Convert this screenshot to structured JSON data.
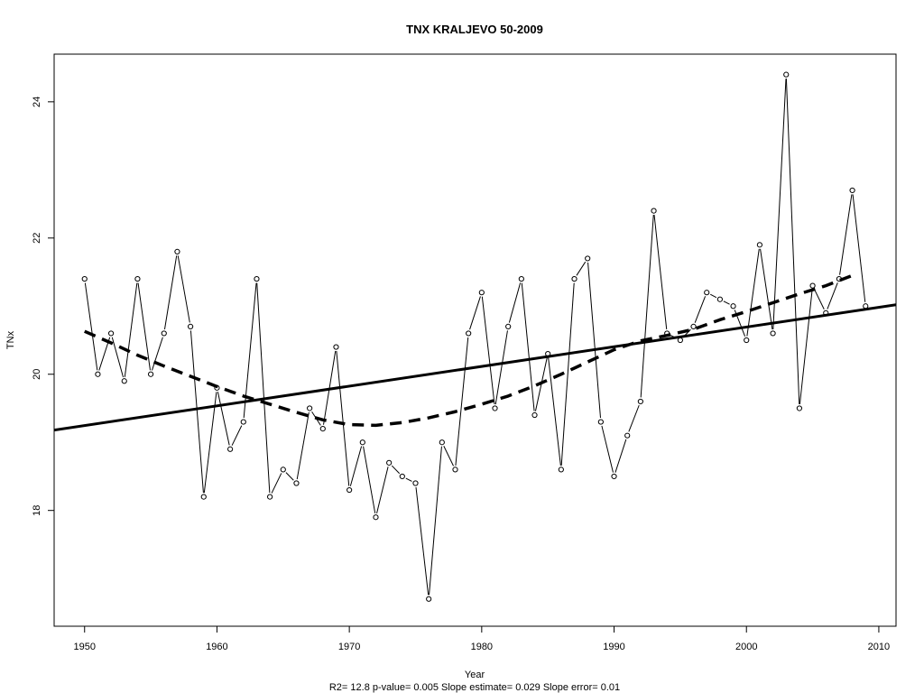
{
  "chart_data": {
    "type": "line",
    "title": "TNX   KRALJEVO 50-2009",
    "xlabel": "Year",
    "ylabel": "TNx",
    "footer": "R2= 12.8  p-value= 0.005  Slope estimate= 0.029  Slope error= 0.01",
    "xlim": [
      1947.7,
      2011.3
    ],
    "ylim": [
      16.3,
      24.7
    ],
    "x_ticks": [
      "1950",
      "1960",
      "1970",
      "1980",
      "1990",
      "2000",
      "2010"
    ],
    "y_ticks": [
      "18",
      "20",
      "22",
      "24"
    ],
    "grid": false,
    "legend": "none",
    "series": [
      {
        "style": "thin-line-with-open-circles",
        "x": [
          1950,
          1951,
          1952,
          1953,
          1954,
          1955,
          1956,
          1957,
          1958,
          1959,
          1960,
          1961,
          1962,
          1963,
          1964,
          1965,
          1966,
          1967,
          1968,
          1969,
          1970,
          1971,
          1972,
          1973,
          1974,
          1975,
          1976,
          1977,
          1978,
          1979,
          1980,
          1981,
          1982,
          1983,
          1984,
          1985,
          1986,
          1987,
          1988,
          1989,
          1990,
          1991,
          1992,
          1993,
          1994,
          1995,
          1996,
          1997,
          1998,
          1999,
          2000,
          2001,
          2002,
          2003,
          2004,
          2005,
          2006,
          2007,
          2008,
          2009
        ],
        "y": [
          21.4,
          20.0,
          20.6,
          19.9,
          21.4,
          20.0,
          20.6,
          21.8,
          20.7,
          18.2,
          19.8,
          18.9,
          19.3,
          21.4,
          18.2,
          18.6,
          18.4,
          19.5,
          19.2,
          20.4,
          18.3,
          19.0,
          17.9,
          18.7,
          18.5,
          18.4,
          16.7,
          19.0,
          18.6,
          20.6,
          21.2,
          19.5,
          20.7,
          21.4,
          19.4,
          20.3,
          18.6,
          21.4,
          21.7,
          19.3,
          18.5,
          19.1,
          19.6,
          22.4,
          20.6,
          20.5,
          20.7,
          21.2,
          21.1,
          21.0,
          20.5,
          21.9,
          20.6,
          24.4,
          19.5,
          21.3,
          20.9,
          21.4,
          22.7,
          21.0
        ]
      },
      {
        "style": "solid-thick-trend",
        "x": [
          1947.7,
          2011.3
        ],
        "y": [
          19.18,
          21.02
        ]
      },
      {
        "style": "dashed-thick-smooth",
        "x": [
          1950,
          1952,
          1954,
          1956,
          1958,
          1960,
          1962,
          1964,
          1966,
          1968,
          1970,
          1972,
          1974,
          1976,
          1978,
          1980,
          1982,
          1984,
          1986,
          1988,
          1990,
          1992,
          1994,
          1996,
          1998,
          2000,
          2002,
          2004,
          2006,
          2008
        ],
        "y": [
          20.63,
          20.46,
          20.28,
          20.12,
          19.97,
          19.82,
          19.68,
          19.56,
          19.44,
          19.33,
          19.26,
          19.25,
          19.29,
          19.36,
          19.45,
          19.56,
          19.68,
          19.83,
          20.0,
          20.18,
          20.36,
          20.49,
          20.57,
          20.66,
          20.8,
          20.92,
          21.05,
          21.18,
          21.3,
          21.45
        ]
      }
    ]
  }
}
